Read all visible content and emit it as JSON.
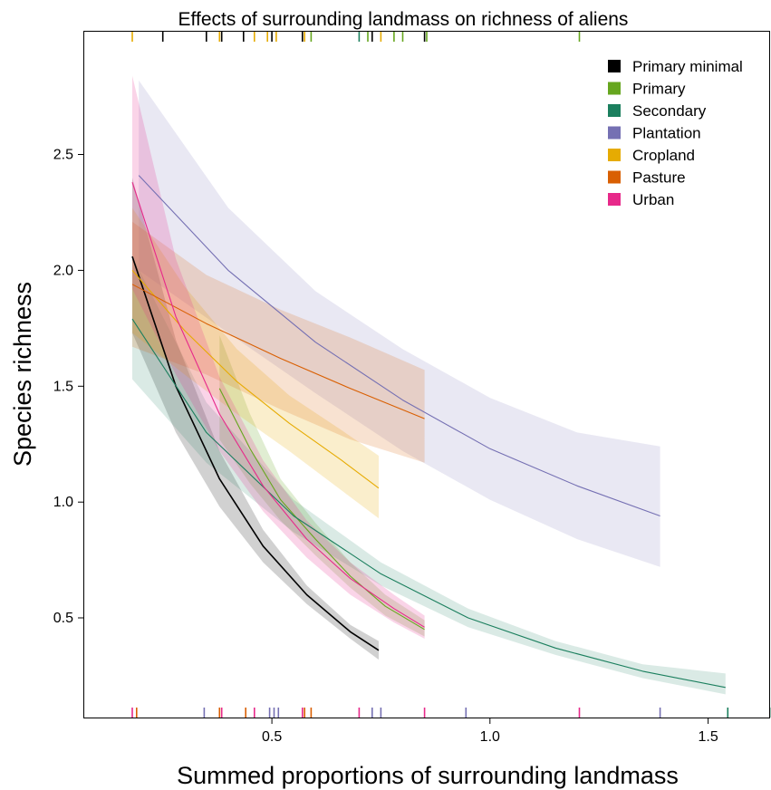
{
  "chart_data": {
    "type": "line",
    "title": "Effects of surrounding landmass on richness of aliens",
    "xlabel": "Summed proportions of surrounding landmass",
    "ylabel": "Species richness",
    "xlim": [
      0.07,
      1.64
    ],
    "ylim": [
      0.07,
      3.03
    ],
    "xticks": [
      {
        "v": 0.5,
        "label": "0.5"
      },
      {
        "v": 1.0,
        "label": "1.0"
      },
      {
        "v": 1.5,
        "label": "1.5"
      }
    ],
    "yticks": [
      {
        "v": 0.5,
        "label": "0.5"
      },
      {
        "v": 1.0,
        "label": "1.0"
      },
      {
        "v": 1.5,
        "label": "1.5"
      },
      {
        "v": 2.0,
        "label": "2.0"
      },
      {
        "v": 2.5,
        "label": "2.5"
      }
    ],
    "legend_position": "top-right",
    "grid": false,
    "series": [
      {
        "name": "Primary minimal",
        "color": "#000000",
        "fill_opacity": 0.18,
        "line_width": 1.6,
        "x": [
          0.18,
          0.28,
          0.38,
          0.48,
          0.58,
          0.68,
          0.745
        ],
        "y": [
          2.06,
          1.5,
          1.1,
          0.81,
          0.6,
          0.44,
          0.36
        ],
        "lower": [
          1.73,
          1.3,
          0.98,
          0.74,
          0.56,
          0.41,
          0.32
        ],
        "upper": [
          2.4,
          1.7,
          1.22,
          0.88,
          0.64,
          0.47,
          0.4
        ]
      },
      {
        "name": "Primary",
        "color": "#66A61E",
        "fill_opacity": 0.2,
        "line_width": 1.1,
        "x": [
          0.38,
          0.45,
          0.52,
          0.6,
          0.68,
          0.76,
          0.85
        ],
        "y": [
          1.49,
          1.23,
          1.01,
          0.84,
          0.68,
          0.55,
          0.45
        ],
        "lower": [
          1.27,
          1.08,
          0.92,
          0.77,
          0.63,
          0.51,
          0.42
        ],
        "upper": [
          1.72,
          1.38,
          1.1,
          0.91,
          0.74,
          0.6,
          0.49
        ]
      },
      {
        "name": "Secondary",
        "color": "#1B7F5E",
        "fill_opacity": 0.16,
        "line_width": 1.1,
        "x": [
          0.18,
          0.35,
          0.55,
          0.75,
          0.95,
          1.15,
          1.35,
          1.54
        ],
        "y": [
          1.79,
          1.3,
          0.94,
          0.69,
          0.5,
          0.37,
          0.27,
          0.2
        ],
        "lower": [
          1.53,
          1.17,
          0.87,
          0.64,
          0.46,
          0.34,
          0.24,
          0.17
        ],
        "upper": [
          2.06,
          1.43,
          1.01,
          0.74,
          0.54,
          0.4,
          0.3,
          0.26
        ]
      },
      {
        "name": "Plantation",
        "color": "#7570B3",
        "fill_opacity": 0.16,
        "line_width": 1.1,
        "x": [
          0.195,
          0.4,
          0.6,
          0.8,
          1.0,
          1.2,
          1.39
        ],
        "y": [
          2.41,
          2.0,
          1.69,
          1.44,
          1.23,
          1.07,
          0.94
        ],
        "lower": [
          2.0,
          1.73,
          1.47,
          1.22,
          1.01,
          0.84,
          0.72
        ],
        "upper": [
          2.82,
          2.27,
          1.91,
          1.66,
          1.45,
          1.3,
          1.24
        ]
      },
      {
        "name": "Cropland",
        "color": "#E6AB02",
        "fill_opacity": 0.2,
        "line_width": 1.1,
        "x": [
          0.18,
          0.3,
          0.42,
          0.54,
          0.66,
          0.745
        ],
        "y": [
          2.0,
          1.74,
          1.52,
          1.34,
          1.18,
          1.06
        ],
        "lower": [
          1.73,
          1.55,
          1.38,
          1.22,
          1.05,
          0.93
        ],
        "upper": [
          2.27,
          1.93,
          1.66,
          1.46,
          1.31,
          1.2
        ]
      },
      {
        "name": "Pasture",
        "color": "#D95F02",
        "fill_opacity": 0.18,
        "line_width": 1.1,
        "x": [
          0.18,
          0.35,
          0.52,
          0.68,
          0.85
        ],
        "y": [
          1.94,
          1.77,
          1.62,
          1.49,
          1.36
        ],
        "lower": [
          1.67,
          1.55,
          1.4,
          1.27,
          1.17
        ],
        "upper": [
          2.21,
          1.98,
          1.83,
          1.71,
          1.57
        ]
      },
      {
        "name": "Urban",
        "color": "#E7298A",
        "fill_opacity": 0.2,
        "line_width": 1.1,
        "x": [
          0.18,
          0.28,
          0.38,
          0.48,
          0.58,
          0.68,
          0.78,
          0.85
        ],
        "y": [
          2.38,
          1.8,
          1.38,
          1.07,
          0.84,
          0.67,
          0.54,
          0.46
        ],
        "lower": [
          1.92,
          1.55,
          1.22,
          0.96,
          0.76,
          0.6,
          0.48,
          0.41
        ],
        "upper": [
          2.84,
          2.05,
          1.54,
          1.18,
          0.92,
          0.74,
          0.6,
          0.51
        ]
      }
    ],
    "rug_top": [
      {
        "x": 0.18,
        "color": "#E6AB02"
      },
      {
        "x": 0.25,
        "color": "#000000"
      },
      {
        "x": 0.35,
        "color": "#000000"
      },
      {
        "x": 0.38,
        "color": "#E6AB02"
      },
      {
        "x": 0.385,
        "color": "#000000"
      },
      {
        "x": 0.435,
        "color": "#000000"
      },
      {
        "x": 0.46,
        "color": "#E6AB02"
      },
      {
        "x": 0.49,
        "color": "#E6AB02"
      },
      {
        "x": 0.5,
        "color": "#000000"
      },
      {
        "x": 0.51,
        "color": "#E6AB02"
      },
      {
        "x": 0.57,
        "color": "#000000"
      },
      {
        "x": 0.575,
        "color": "#E6AB02"
      },
      {
        "x": 0.59,
        "color": "#66A61E"
      },
      {
        "x": 0.7,
        "color": "#1B7F5E"
      },
      {
        "x": 0.72,
        "color": "#66A61E"
      },
      {
        "x": 0.73,
        "color": "#000000"
      },
      {
        "x": 0.75,
        "color": "#E6AB02"
      },
      {
        "x": 0.78,
        "color": "#66A61E"
      },
      {
        "x": 0.8,
        "color": "#66A61E"
      },
      {
        "x": 0.85,
        "color": "#000000"
      },
      {
        "x": 0.855,
        "color": "#66A61E"
      },
      {
        "x": 1.205,
        "color": "#66A61E"
      }
    ],
    "rug_bottom": [
      {
        "x": 0.18,
        "color": "#E7298A"
      },
      {
        "x": 0.19,
        "color": "#D95F02"
      },
      {
        "x": 0.345,
        "color": "#7570B3"
      },
      {
        "x": 0.38,
        "color": "#D95F02"
      },
      {
        "x": 0.385,
        "color": "#E7298A"
      },
      {
        "x": 0.44,
        "color": "#D95F02"
      },
      {
        "x": 0.46,
        "color": "#E7298A"
      },
      {
        "x": 0.495,
        "color": "#7570B3"
      },
      {
        "x": 0.505,
        "color": "#7570B3"
      },
      {
        "x": 0.515,
        "color": "#7570B3"
      },
      {
        "x": 0.57,
        "color": "#E7298A"
      },
      {
        "x": 0.575,
        "color": "#D95F02"
      },
      {
        "x": 0.59,
        "color": "#D95F02"
      },
      {
        "x": 0.7,
        "color": "#E7298A"
      },
      {
        "x": 0.73,
        "color": "#7570B3"
      },
      {
        "x": 0.75,
        "color": "#7570B3"
      },
      {
        "x": 0.85,
        "color": "#E7298A"
      },
      {
        "x": 0.945,
        "color": "#7570B3"
      },
      {
        "x": 1.205,
        "color": "#E7298A"
      },
      {
        "x": 1.39,
        "color": "#7570B3"
      },
      {
        "x": 1.545,
        "color": "#1B7F5E"
      },
      {
        "x": 1.645,
        "color": "#1B7F5E"
      }
    ]
  }
}
